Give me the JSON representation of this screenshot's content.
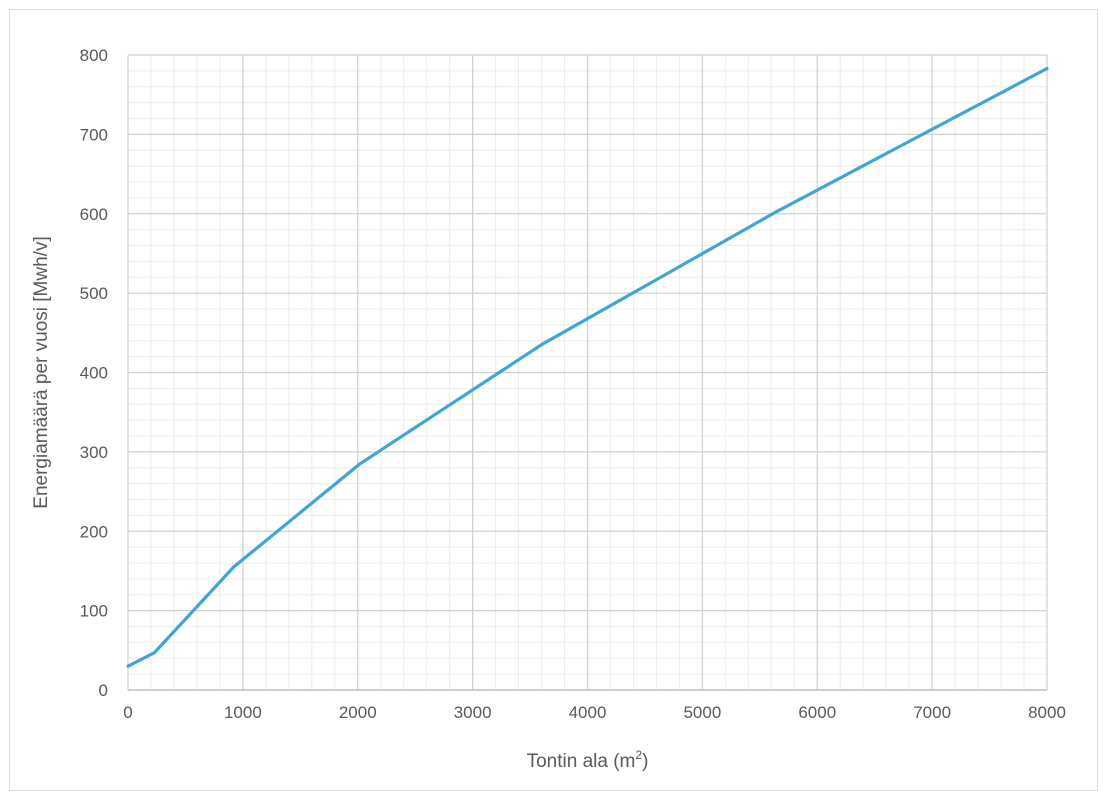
{
  "chart_data": {
    "type": "line",
    "title": "",
    "xlabel": "Tontin ala (m",
    "xlabel_superscript": "2",
    "xlabel_suffix": ")",
    "ylabel": "Energiamäärä per vuosi [Mwh/v]",
    "xlim": [
      0,
      8000
    ],
    "ylim": [
      0,
      800
    ],
    "x_ticks": [
      "0",
      "1000",
      "2000",
      "3000",
      "4000",
      "5000",
      "6000",
      "7000",
      "8000"
    ],
    "y_ticks": [
      "0",
      "100",
      "200",
      "300",
      "400",
      "500",
      "600",
      "700",
      "800"
    ],
    "grid": true,
    "legend": "none",
    "series": [
      {
        "color": "#41a5d3",
        "x": [
          0,
          230,
          920,
          2020,
          3600,
          5650,
          8000
        ],
        "y": [
          30,
          47,
          155,
          285,
          435,
          603,
          783
        ]
      }
    ]
  }
}
